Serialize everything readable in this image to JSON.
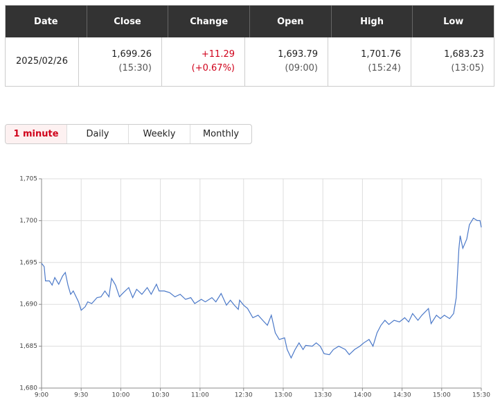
{
  "table": {
    "headers": [
      "Date",
      "Close",
      "Change",
      "Open",
      "High",
      "Low"
    ],
    "row": [
      [
        "2025/02/26"
      ],
      [
        "1,699.26",
        "(15:30)"
      ],
      [
        "+11.29",
        "(+0.67%)"
      ],
      [
        "1,693.79",
        "(09:00)"
      ],
      [
        "1,701.76",
        "(15:24)"
      ],
      [
        "1,683.23",
        "(13:05)"
      ]
    ],
    "highlight_color": "#d0021b",
    "highlight_column": 2
  },
  "tabs": {
    "items": [
      "1 minute",
      "Daily",
      "Weekly",
      "Monthly"
    ],
    "active": 0
  },
  "chart_data": {
    "type": "line",
    "color": "#4a78c8",
    "grid": true,
    "x": [
      0,
      2,
      3,
      6,
      8,
      10,
      13,
      16,
      18,
      20,
      22,
      24,
      28,
      30,
      33,
      35,
      38,
      42,
      45,
      48,
      51,
      53,
      56,
      59,
      62,
      66,
      69,
      72,
      76,
      80,
      83,
      87,
      89,
      93,
      97,
      101,
      105,
      109,
      113,
      116,
      121,
      124,
      129,
      132,
      136,
      140,
      143,
      146,
      149,
      150,
      153,
      156,
      160,
      164,
      168,
      171,
      174,
      177,
      180,
      184,
      186,
      189,
      192,
      195,
      198,
      200,
      205,
      208,
      211,
      214,
      218,
      221,
      225,
      230,
      233,
      237,
      241,
      244,
      248,
      251,
      254,
      257,
      260,
      263,
      267,
      271,
      275,
      278,
      281,
      285,
      288,
      293,
      295,
      299,
      302,
      305,
      309,
      312,
      314,
      316,
      317,
      319,
      322,
      324,
      327,
      330,
      332,
      333
    ],
    "values": [
      1694.9,
      1694.5,
      1692.8,
      1692.8,
      1692.3,
      1693.2,
      1692.4,
      1693.4,
      1693.8,
      1692.3,
      1691.2,
      1691.6,
      1690.3,
      1689.3,
      1689.7,
      1690.3,
      1690.1,
      1690.8,
      1690.9,
      1691.6,
      1690.9,
      1693.1,
      1692.3,
      1690.9,
      1691.4,
      1692.0,
      1690.8,
      1691.8,
      1691.2,
      1692.0,
      1691.2,
      1692.4,
      1691.6,
      1691.6,
      1691.4,
      1690.9,
      1691.2,
      1690.6,
      1690.8,
      1690.1,
      1690.6,
      1690.3,
      1690.8,
      1690.3,
      1691.3,
      1689.9,
      1690.5,
      1689.9,
      1689.4,
      1690.5,
      1689.9,
      1689.5,
      1688.4,
      1688.7,
      1688.0,
      1687.5,
      1688.7,
      1686.6,
      1685.8,
      1686.0,
      1684.6,
      1683.6,
      1684.6,
      1685.4,
      1684.6,
      1685.1,
      1685.0,
      1685.4,
      1685.0,
      1684.1,
      1684.0,
      1684.6,
      1685.0,
      1684.6,
      1684.0,
      1684.6,
      1685.0,
      1685.4,
      1685.8,
      1685.0,
      1686.6,
      1687.5,
      1688.1,
      1687.6,
      1688.1,
      1687.9,
      1688.4,
      1687.9,
      1688.9,
      1688.1,
      1688.7,
      1689.5,
      1687.7,
      1688.7,
      1688.3,
      1688.7,
      1688.3,
      1688.9,
      1690.8,
      1696.6,
      1698.2,
      1696.7,
      1697.8,
      1699.5,
      1700.3,
      1700.0,
      1700.0,
      1699.2
    ],
    "xlim": [
      0,
      333
    ],
    "xticks": [
      {
        "value": 0,
        "label": "9:00"
      },
      {
        "value": 30,
        "label": "9:30"
      },
      {
        "value": 60,
        "label": "10:00"
      },
      {
        "value": 90,
        "label": "10:30"
      },
      {
        "value": 120,
        "label": "11:00"
      },
      {
        "value": 153,
        "label": "12:30"
      },
      {
        "value": 183,
        "label": "13:00"
      },
      {
        "value": 213,
        "label": "13:30"
      },
      {
        "value": 243,
        "label": "14:00"
      },
      {
        "value": 273,
        "label": "14:30"
      },
      {
        "value": 303,
        "label": "15:00"
      },
      {
        "value": 333,
        "label": "15:30"
      }
    ],
    "ylim": [
      1680,
      1705
    ],
    "yticks": [
      {
        "value": 1680,
        "label": "1,680"
      },
      {
        "value": 1685,
        "label": "1,685"
      },
      {
        "value": 1690,
        "label": "1,690"
      },
      {
        "value": 1695,
        "label": "1,695"
      },
      {
        "value": 1700,
        "label": "1,700"
      },
      {
        "value": 1705,
        "label": "1,705"
      }
    ]
  }
}
